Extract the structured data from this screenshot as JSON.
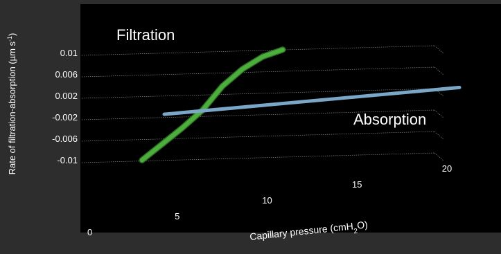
{
  "chart_data": {
    "type": "line",
    "view": "3d-perspective",
    "colors": {
      "background": "#000000",
      "frame": "#2d2d2d",
      "text": "#ffffff",
      "grid": "#8a8a8a"
    },
    "ylabel": "Rate of filtration-absorption (µm s",
    "ylabel_sup": "-1",
    "ylabel_close": ")",
    "xlabel_prefix": "Capillary pressure (cmH",
    "xlabel_sub": "2",
    "xlabel_suffix": "O)",
    "y_ticks": [
      "0.01",
      "0.006",
      "0.002",
      "-0.002",
      "-0.006",
      "-0.01"
    ],
    "y_tick_values": [
      0.01,
      0.006,
      0.002,
      -0.002,
      -0.006,
      -0.01
    ],
    "x_ticks": [
      "0",
      "5",
      "10",
      "15",
      "20"
    ],
    "x_tick_values": [
      0,
      5,
      10,
      15,
      20
    ],
    "ylim": [
      -0.01,
      0.01
    ],
    "xlim": [
      0,
      20
    ],
    "grid": true,
    "annotations": [
      {
        "text": "Filtration",
        "region": "upper-left"
      },
      {
        "text": "Absorption",
        "region": "right"
      }
    ],
    "series": [
      {
        "color": "#4caf3c",
        "x": [
          2,
          4,
          6,
          8,
          10,
          12,
          14,
          16
        ],
        "y": [
          -0.0098,
          -0.0068,
          -0.0038,
          -0.0005,
          0.004,
          0.0072,
          0.0095,
          0.0108
        ]
      },
      {
        "color": "#7aa7c7",
        "x": [
          3,
          17
        ],
        "y": [
          -0.0015,
          0.0035
        ]
      }
    ]
  }
}
